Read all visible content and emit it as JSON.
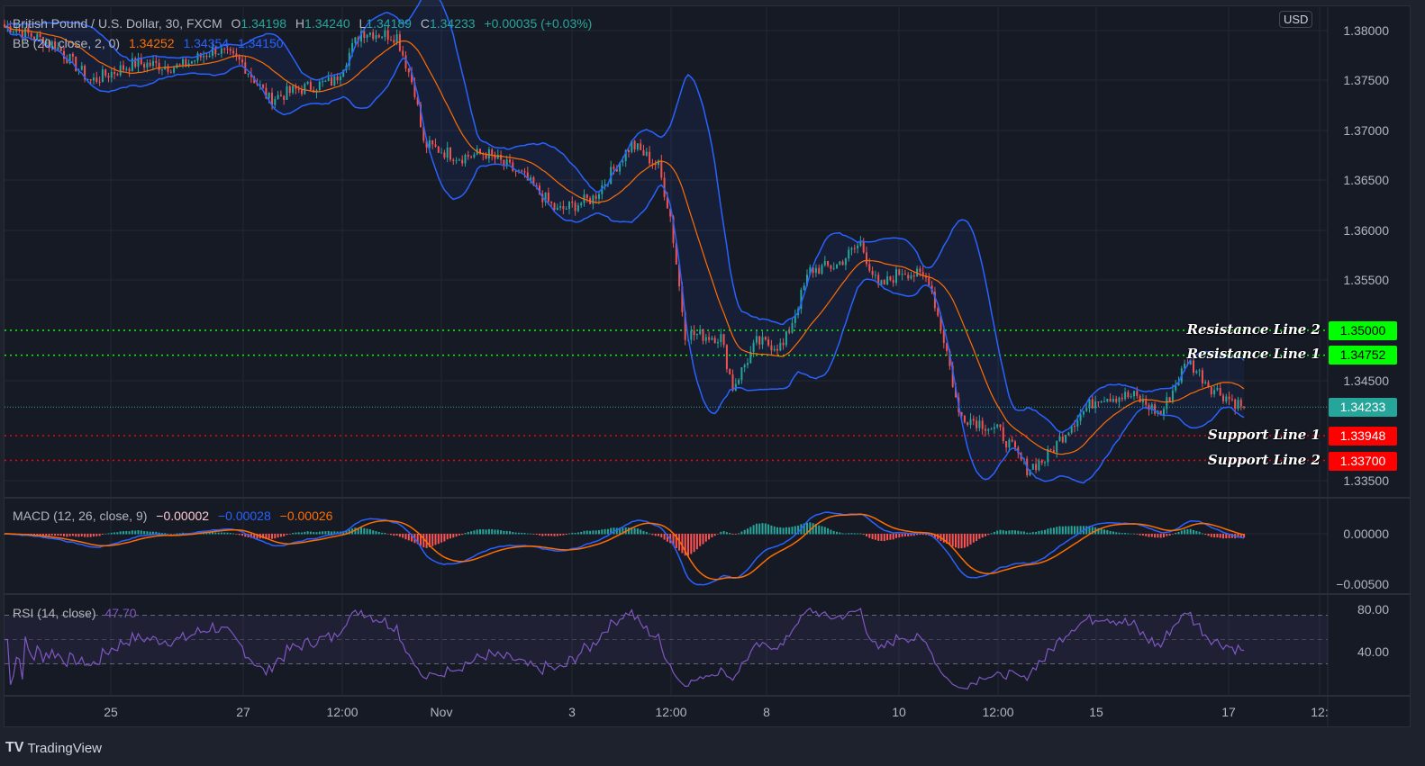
{
  "chart_data": {
    "type": "candlestick",
    "title": "British Pound / U.S. Dollar, 30, FXCM",
    "ohlc": {
      "open": "1.34198",
      "high": "1.34240",
      "low": "1.34189",
      "close": "1.34233",
      "change": "+0.00035 (+0.03%)"
    },
    "currency": "USD",
    "price_path": [
      [
        2,
        1.3803
      ],
      [
        17,
        1.3785
      ],
      [
        29,
        1.3749
      ],
      [
        44,
        1.3767
      ],
      [
        59,
        1.3763
      ],
      [
        71,
        1.3781
      ],
      [
        80,
        1.3767
      ],
      [
        89,
        1.3731
      ],
      [
        98,
        1.374
      ],
      [
        111,
        1.3749
      ],
      [
        120,
        1.3799
      ],
      [
        132,
        1.3794
      ],
      [
        138,
        1.374
      ],
      [
        141,
        1.3686
      ],
      [
        153,
        1.3673
      ],
      [
        162,
        1.3677
      ],
      [
        174,
        1.3655
      ],
      [
        186,
        1.3619
      ],
      [
        198,
        1.3632
      ],
      [
        211,
        1.3686
      ],
      [
        220,
        1.3664
      ],
      [
        224,
        1.3614
      ],
      [
        229,
        1.3497
      ],
      [
        241,
        1.3493
      ],
      [
        245,
        1.3443
      ],
      [
        253,
        1.3488
      ],
      [
        262,
        1.3484
      ],
      [
        271,
        1.356
      ],
      [
        280,
        1.3565
      ],
      [
        288,
        1.3587
      ],
      [
        294,
        1.3542
      ],
      [
        302,
        1.356
      ],
      [
        311,
        1.3551
      ],
      [
        317,
        1.3479
      ],
      [
        321,
        1.3416
      ],
      [
        329,
        1.3407
      ],
      [
        335,
        1.3398
      ],
      [
        344,
        1.3362
      ],
      [
        350,
        1.3371
      ],
      [
        359,
        1.3407
      ],
      [
        368,
        1.3434
      ],
      [
        380,
        1.3434
      ],
      [
        389,
        1.3416
      ],
      [
        398,
        1.347
      ],
      [
        406,
        1.3443
      ],
      [
        417,
        1.3423
      ]
    ],
    "ylim": [
      1.333,
      1.3805
    ],
    "price_ticks": [
      "1.38000",
      "1.37500",
      "1.37000",
      "1.36500",
      "1.36000",
      "1.35500",
      "1.34500",
      "1.33500"
    ],
    "x_ticks": [
      "25",
      "27",
      "12:00",
      "Nov",
      "3",
      "12:00",
      "8",
      "10",
      "12:00",
      "15",
      "17",
      "12:"
    ],
    "bb": {
      "label": "BB (20, close, 2, 0)",
      "basis": "1.34252",
      "upper": "1.34354",
      "lower": "1.34150"
    },
    "macd": {
      "label": "MACD (12, 26, close, 9)",
      "hist": "−0.00002",
      "macd": "−0.00028",
      "signal": "−0.00026",
      "ticks": [
        "0.00000",
        "−0.00500"
      ]
    },
    "rsi": {
      "label": "RSI (14, close)",
      "value": "47.70",
      "ticks": [
        "80.00",
        "40.00"
      ]
    },
    "levels": [
      {
        "name": "Resistance Line 2",
        "value": "1.35000",
        "color": "#00ff00"
      },
      {
        "name": "Resistance Line 1",
        "value": "1.34752",
        "color": "#00ff00"
      },
      {
        "name": "Support Line 1",
        "value": "1.33948",
        "color": "#ff0000"
      },
      {
        "name": "Support Line 2",
        "value": "1.33700",
        "color": "#ff0000"
      }
    ],
    "last_price": "1.34233",
    "colors": {
      "up": "#26a69a",
      "down": "#ef5350",
      "bb_basis": "#ff6d00",
      "bb_band": "#2962ff",
      "rsi": "#7e57c2"
    }
  },
  "footer": {
    "brand": "TradingView"
  }
}
